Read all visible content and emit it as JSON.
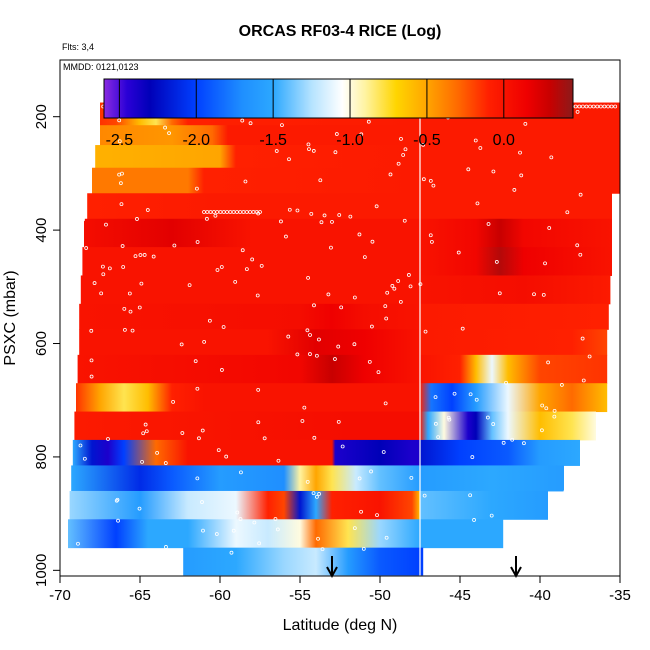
{
  "chart_data": {
    "type": "heatmap",
    "title": "ORCAS RF03-4 RICE (Log)",
    "flights_note": "Flts: 3,4",
    "dates_note": "MMDD: 0121,0123",
    "xlabel": "Latitude (deg N)",
    "ylabel": "PSXC (mbar)",
    "xlim": [
      -70,
      -35
    ],
    "ylim": [
      1010,
      100
    ],
    "x_ticks": [
      -70,
      -65,
      -60,
      -55,
      -50,
      -45,
      -40,
      -35
    ],
    "x_tick_labels": [
      "-70",
      "-65",
      "-60",
      "-55",
      "-50",
      "-45",
      "-40",
      "-35"
    ],
    "y_ticks": [
      200,
      400,
      600,
      800,
      1000
    ],
    "y_tick_labels": [
      "200",
      "400",
      "600",
      "800",
      "1000"
    ],
    "colorbar": {
      "range": [
        -2.6,
        0.45
      ],
      "ticks": [
        -2.5,
        -2.0,
        -1.5,
        -1.0,
        -0.5,
        0.0
      ],
      "tick_labels": [
        "-2.5",
        "-2.0",
        "-1.5",
        "-1.0",
        "-0.5",
        "0.0"
      ],
      "stops": [
        {
          "v": -2.6,
          "c": "#8a2be2"
        },
        {
          "v": -2.45,
          "c": "#2a00d6"
        },
        {
          "v": -2.3,
          "c": "#0000b8"
        },
        {
          "v": -2.0,
          "c": "#0040ff"
        },
        {
          "v": -1.7,
          "c": "#1f8fff"
        },
        {
          "v": -1.5,
          "c": "#2ca8ff"
        },
        {
          "v": -1.25,
          "c": "#b5e3ff"
        },
        {
          "v": -1.05,
          "c": "#ffffff"
        },
        {
          "v": -0.9,
          "c": "#fff3a0"
        },
        {
          "v": -0.7,
          "c": "#ffd500"
        },
        {
          "v": -0.5,
          "c": "#ffa500"
        },
        {
          "v": -0.3,
          "c": "#ff6a00"
        },
        {
          "v": -0.1,
          "c": "#ff2000"
        },
        {
          "v": 0.15,
          "c": "#ef0000"
        },
        {
          "v": 0.3,
          "c": "#c80000"
        },
        {
          "v": 0.45,
          "c": "#8c1a1a"
        }
      ]
    },
    "flight_gap_latitude": -47.5,
    "arrows_latitude": [
      -53,
      -41.5
    ],
    "bands": [
      {
        "p0": 175,
        "p1": 215,
        "x0": -67.5,
        "x1": -47.5,
        "pts": [
          [
            -67.5,
            -0.15
          ],
          [
            -66.5,
            -0.2
          ],
          [
            -65,
            -0.6
          ],
          [
            -64,
            -0.8
          ],
          [
            -63,
            -0.3
          ],
          [
            -62,
            -0.1
          ],
          [
            -47.5,
            -0.05
          ]
        ]
      },
      {
        "p0": 175,
        "p1": 215,
        "x0": -47.5,
        "x1": -35,
        "pts": [
          [
            -47.5,
            -0.05
          ],
          [
            -35,
            -0.05
          ]
        ]
      },
      {
        "p0": 215,
        "p1": 250,
        "x0": -67.5,
        "x1": -47.5,
        "pts": [
          [
            -67.5,
            -0.4
          ],
          [
            -63,
            -0.45
          ],
          [
            -60.5,
            -0.3
          ],
          [
            -59.5,
            -0.05
          ],
          [
            -47.5,
            -0.05
          ]
        ]
      },
      {
        "p0": 215,
        "p1": 250,
        "x0": -47.5,
        "x1": -35,
        "pts": [
          [
            -47.5,
            -0.05
          ],
          [
            -35,
            -0.05
          ]
        ]
      },
      {
        "p0": 250,
        "p1": 290,
        "x0": -67.8,
        "x1": -47.5,
        "pts": [
          [
            -67.8,
            -0.55
          ],
          [
            -60,
            -0.5
          ],
          [
            -59,
            -0.1
          ],
          [
            -47.5,
            -0.05
          ]
        ]
      },
      {
        "p0": 250,
        "p1": 290,
        "x0": -47.5,
        "x1": -35,
        "pts": [
          [
            -47.5,
            -0.05
          ],
          [
            -35,
            -0.05
          ]
        ]
      },
      {
        "p0": 290,
        "p1": 335,
        "x0": -68,
        "x1": -47.5,
        "pts": [
          [
            -68,
            -0.35
          ],
          [
            -62,
            -0.35
          ],
          [
            -61,
            -0.1
          ],
          [
            -47.5,
            -0.05
          ]
        ]
      },
      {
        "p0": 290,
        "p1": 335,
        "x0": -47.5,
        "x1": -35,
        "pts": [
          [
            -47.5,
            -0.05
          ],
          [
            -35,
            -0.05
          ]
        ]
      },
      {
        "p0": 335,
        "p1": 380,
        "x0": -68.3,
        "x1": -47.5,
        "pts": [
          [
            -68.3,
            -0.1
          ],
          [
            -60,
            -0.05
          ],
          [
            -47.5,
            -0.05
          ]
        ]
      },
      {
        "p0": 335,
        "p1": 380,
        "x0": -47.5,
        "x1": -35.5,
        "pts": [
          [
            -47.5,
            -0.05
          ],
          [
            -35.5,
            -0.05
          ]
        ]
      },
      {
        "p0": 380,
        "p1": 430,
        "x0": -68.5,
        "x1": -47.5,
        "pts": [
          [
            -68.5,
            0.05
          ],
          [
            -63,
            0.2
          ],
          [
            -58,
            0.0
          ],
          [
            -47.5,
            0.0
          ]
        ]
      },
      {
        "p0": 380,
        "p1": 430,
        "x0": -47.5,
        "x1": -35.5,
        "pts": [
          [
            -47.5,
            0.0
          ],
          [
            -44,
            0.1
          ],
          [
            -42.5,
            0.3
          ],
          [
            -41,
            0.1
          ],
          [
            -35.5,
            0.0
          ]
        ]
      },
      {
        "p0": 430,
        "p1": 480,
        "x0": -68.6,
        "x1": -47.5,
        "pts": [
          [
            -68.6,
            0.0
          ],
          [
            -58,
            0.0
          ],
          [
            -47.5,
            0.0
          ]
        ]
      },
      {
        "p0": 430,
        "p1": 480,
        "x0": -47.5,
        "x1": -35.5,
        "pts": [
          [
            -47.5,
            0.0
          ],
          [
            -44,
            0.1
          ],
          [
            -42.5,
            0.35
          ],
          [
            -41,
            0.15
          ],
          [
            -35.5,
            0.0
          ]
        ]
      },
      {
        "p0": 480,
        "p1": 530,
        "x0": -68.7,
        "x1": -47.5,
        "pts": [
          [
            -68.7,
            0.0
          ],
          [
            -52,
            0.0
          ],
          [
            -47.5,
            0.0
          ]
        ]
      },
      {
        "p0": 480,
        "p1": 530,
        "x0": -47.5,
        "x1": -35.6,
        "pts": [
          [
            -47.5,
            0.0
          ],
          [
            -41,
            0.05
          ],
          [
            -35.6,
            -0.05
          ]
        ]
      },
      {
        "p0": 530,
        "p1": 575,
        "x0": -68.8,
        "x1": -47.5,
        "pts": [
          [
            -68.8,
            0.0
          ],
          [
            -55,
            0.05
          ],
          [
            -53,
            0.15
          ],
          [
            -51,
            0.05
          ],
          [
            -47.5,
            0.0
          ]
        ]
      },
      {
        "p0": 530,
        "p1": 575,
        "x0": -47.5,
        "x1": -35.7,
        "pts": [
          [
            -47.5,
            -0.05
          ],
          [
            -35.7,
            -0.1
          ]
        ]
      },
      {
        "p0": 575,
        "p1": 620,
        "x0": -68.8,
        "x1": -47.5,
        "pts": [
          [
            -68.8,
            0.0
          ],
          [
            -57,
            0.0
          ],
          [
            -54,
            0.2
          ],
          [
            -51,
            0.15
          ],
          [
            -47.5,
            0.0
          ]
        ]
      },
      {
        "p0": 575,
        "p1": 620,
        "x0": -47.5,
        "x1": -35.8,
        "pts": [
          [
            -47.5,
            -0.05
          ],
          [
            -38,
            -0.1
          ],
          [
            -35.8,
            -0.2
          ]
        ]
      },
      {
        "p0": 620,
        "p1": 670,
        "x0": -68.9,
        "x1": -47.5,
        "pts": [
          [
            -68.9,
            0.0
          ],
          [
            -55,
            0.1
          ],
          [
            -53,
            0.3
          ],
          [
            -51,
            0.15
          ],
          [
            -47.5,
            0.0
          ]
        ]
      },
      {
        "p0": 620,
        "p1": 670,
        "x0": -47.5,
        "x1": -35.8,
        "pts": [
          [
            -47.5,
            0.0
          ],
          [
            -45,
            -0.1
          ],
          [
            -44,
            -0.6
          ],
          [
            -43,
            -1.1
          ],
          [
            -42,
            -0.6
          ],
          [
            -40,
            -0.2
          ],
          [
            -35.8,
            -0.15
          ]
        ]
      },
      {
        "p0": 670,
        "p1": 720,
        "x0": -69,
        "x1": -47.5,
        "pts": [
          [
            -69,
            -0.15
          ],
          [
            -67.5,
            -0.5
          ],
          [
            -66,
            -0.8
          ],
          [
            -64.5,
            -0.6
          ],
          [
            -63,
            -0.1
          ],
          [
            -61,
            0.0
          ],
          [
            -47.5,
            0.0
          ]
        ]
      },
      {
        "p0": 670,
        "p1": 720,
        "x0": -47.5,
        "x1": -35.8,
        "pts": [
          [
            -47.5,
            -0.1
          ],
          [
            -46.8,
            -1.8
          ],
          [
            -45.5,
            -2.0
          ],
          [
            -44,
            -1.6
          ],
          [
            -42,
            -1.1
          ],
          [
            -40,
            -0.5
          ],
          [
            -38,
            -0.3
          ],
          [
            -35.8,
            -0.6
          ]
        ]
      },
      {
        "p0": 720,
        "p1": 770,
        "x0": -69.1,
        "x1": -47.5,
        "pts": [
          [
            -69.1,
            -0.05
          ],
          [
            -52,
            0.05
          ],
          [
            -47.5,
            0.05
          ]
        ]
      },
      {
        "p0": 720,
        "p1": 770,
        "x0": -47.5,
        "x1": -36.5,
        "pts": [
          [
            -47.5,
            -0.05
          ],
          [
            -47,
            -1.5
          ],
          [
            -46,
            -1.0
          ],
          [
            -44.5,
            -2.4
          ],
          [
            -44,
            -2.3
          ],
          [
            -43,
            -1.4
          ],
          [
            -42,
            -1.1
          ],
          [
            -40,
            -0.6
          ],
          [
            -38,
            -0.8
          ],
          [
            -36.5,
            -1.0
          ]
        ]
      },
      {
        "p0": 770,
        "p1": 815,
        "x0": -69.2,
        "x1": -47.5,
        "pts": [
          [
            -69.2,
            -1.5
          ],
          [
            -68,
            -2.2
          ],
          [
            -67,
            -2.4
          ],
          [
            -66,
            -2.0
          ],
          [
            -64,
            -0.3
          ],
          [
            -62,
            0.0
          ],
          [
            -53,
            0.0
          ],
          [
            -52.8,
            -2.4
          ],
          [
            -50,
            -2.3
          ],
          [
            -48,
            -2.4
          ],
          [
            -47.5,
            -2.4
          ]
        ]
      },
      {
        "p0": 770,
        "p1": 815,
        "x0": -47.5,
        "x1": -37.5,
        "pts": [
          [
            -47.5,
            -2.2
          ],
          [
            -45,
            -2.0
          ],
          [
            -42,
            -1.9
          ],
          [
            -40,
            -1.6
          ],
          [
            -37.5,
            -1.5
          ]
        ]
      },
      {
        "p0": 815,
        "p1": 860,
        "x0": -69.3,
        "x1": -47.5,
        "pts": [
          [
            -69.3,
            -1.5
          ],
          [
            -65,
            -2.1
          ],
          [
            -63,
            -1.9
          ],
          [
            -60,
            -1.6
          ],
          [
            -56,
            -1.7
          ],
          [
            -55,
            -0.9
          ],
          [
            -54,
            -0.5
          ],
          [
            -53,
            -0.8
          ],
          [
            -51.5,
            -1.2
          ],
          [
            -50,
            -1.4
          ],
          [
            -47.5,
            -1.6
          ]
        ]
      },
      {
        "p0": 815,
        "p1": 860,
        "x0": -47.5,
        "x1": -38.5,
        "pts": [
          [
            -47.5,
            -1.6
          ],
          [
            -43,
            -1.5
          ],
          [
            -38.5,
            -1.6
          ]
        ]
      },
      {
        "p0": 860,
        "p1": 910,
        "x0": -69.4,
        "x1": -47.5,
        "pts": [
          [
            -69.4,
            -1.3
          ],
          [
            -65,
            -1.6
          ],
          [
            -62,
            -1.2
          ],
          [
            -59,
            -1.1
          ],
          [
            -57,
            -0.1
          ],
          [
            -56,
            -0.2
          ],
          [
            -55,
            -2.2
          ],
          [
            -54,
            -1.5
          ],
          [
            -53,
            -0.1
          ],
          [
            -50,
            0.0
          ],
          [
            -48,
            -0.2
          ],
          [
            -47.5,
            -0.6
          ]
        ]
      },
      {
        "p0": 860,
        "p1": 910,
        "x0": -47.5,
        "x1": -39.5,
        "pts": [
          [
            -47.5,
            -1.4
          ],
          [
            -43,
            -1.5
          ],
          [
            -39.5,
            -1.6
          ]
        ]
      },
      {
        "p0": 910,
        "p1": 960,
        "x0": -69.5,
        "x1": -47.5,
        "pts": [
          [
            -69.5,
            -1.4
          ],
          [
            -66.5,
            -2.0
          ],
          [
            -64.5,
            -1.5
          ],
          [
            -62,
            -1.5
          ],
          [
            -59,
            -1.1
          ],
          [
            -57,
            -1.2
          ],
          [
            -55,
            -1.0
          ],
          [
            -54,
            -0.3
          ],
          [
            -52,
            -0.8
          ],
          [
            -50,
            -1.3
          ],
          [
            -47.5,
            -1.5
          ]
        ]
      },
      {
        "p0": 910,
        "p1": 960,
        "x0": -47.5,
        "x1": -42.3,
        "pts": [
          [
            -47.5,
            -1.5
          ],
          [
            -42.3,
            -1.5
          ]
        ]
      },
      {
        "p0": 960,
        "p1": 1008,
        "x0": -62.3,
        "x1": -47.5,
        "pts": [
          [
            -62.3,
            -1.6
          ],
          [
            -59,
            -1.5
          ],
          [
            -56,
            -1.3
          ],
          [
            -54,
            -1.2
          ],
          [
            -52,
            -1.6
          ],
          [
            -50,
            -1.9
          ],
          [
            -47.5,
            -2.0
          ]
        ]
      },
      {
        "p0": 960,
        "p1": 1008,
        "x0": -47.5,
        "x1": -47.3,
        "pts": [
          [
            -47.5,
            -2.0
          ],
          [
            -47.3,
            -2.0
          ]
        ]
      }
    ],
    "sample_markers": [
      {
        "x0": -67.3,
        "x1": -62.5,
        "p": 182,
        "n": 22
      },
      {
        "x0": -58.5,
        "x1": -54.5,
        "p": 182,
        "n": 22
      },
      {
        "x0": -51.5,
        "x1": -48.5,
        "p": 182,
        "n": 16
      },
      {
        "x0": -44.5,
        "x1": -35.3,
        "p": 182,
        "n": 42
      },
      {
        "x0": -61,
        "x1": -57.5,
        "p": 368,
        "n": 18
      }
    ]
  }
}
